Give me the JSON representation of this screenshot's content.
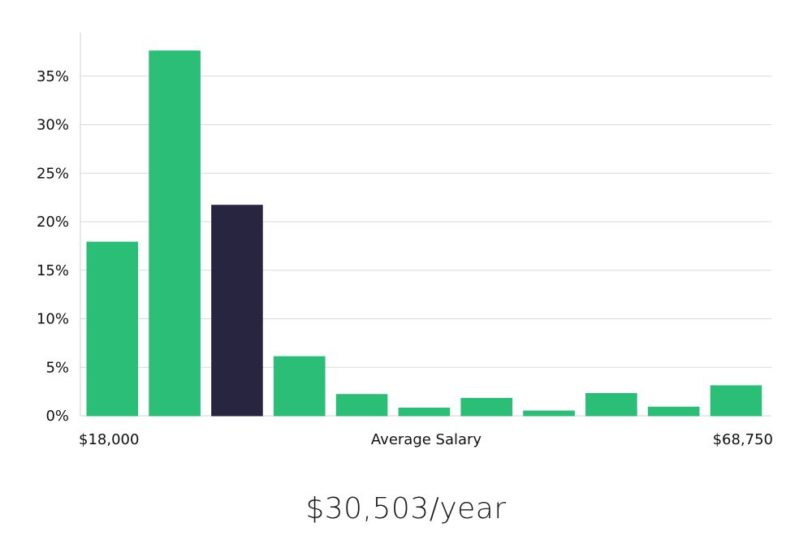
{
  "chart_data": {
    "type": "bar",
    "title": "",
    "xlabel": "Average Salary",
    "ylabel": "",
    "x_range_labels": {
      "min": "$18,000",
      "max": "$68,750"
    },
    "ylim": [
      0,
      39.5
    ],
    "yticks": [
      0,
      5,
      10,
      15,
      20,
      25,
      30,
      35
    ],
    "ytick_suffix": "%",
    "grid": true,
    "legend": "none",
    "values": [
      17.9,
      37.6,
      21.7,
      6.1,
      2.2,
      0.8,
      1.8,
      0.5,
      2.3,
      0.9,
      3.1
    ],
    "highlight_index": 2,
    "colors": {
      "bar": "#2abe76",
      "highlight": "#27253f",
      "grid": "#d9d9d9",
      "axis": "#d0d0d0"
    }
  },
  "summary": {
    "salary_text": "$30,503/year"
  }
}
